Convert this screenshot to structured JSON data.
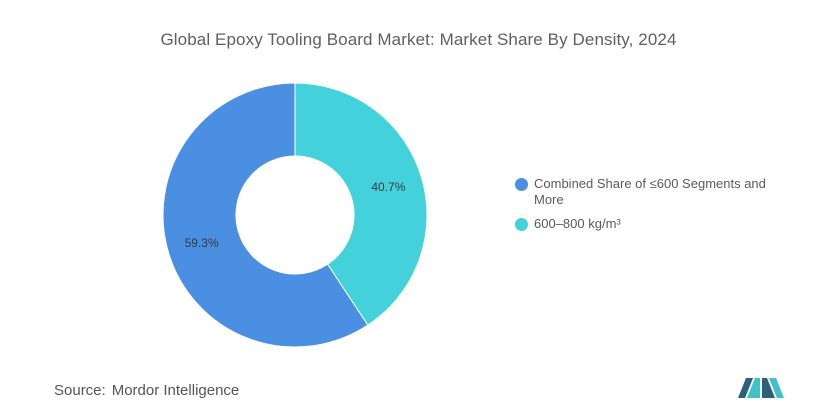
{
  "title": "Global Epoxy Tooling Board Market: Market Share By Density, 2024",
  "source": {
    "label": "Source:",
    "value": "Mordor Intelligence"
  },
  "logo_icon": "mordor-intelligence-logo",
  "colors": {
    "series_1": "#4b8fe2",
    "series_2": "#43d1dc",
    "logo_dark": "#2c5f7c",
    "logo_teal": "#3fc2c9"
  },
  "chart_data": {
    "type": "pie",
    "donut": true,
    "title": "Global Epoxy Tooling Board Market: Market Share By Density, 2024",
    "legend_position": "right",
    "slices": [
      {
        "label": "600–800 kg/m³",
        "value": 40.7,
        "display": "40.7%",
        "color": "#43d1dc"
      },
      {
        "label": "Combined Share of ≤600 Segments and More",
        "value": 59.3,
        "display": "59.3%",
        "color": "#4b8fe2"
      }
    ],
    "legend": [
      {
        "label": "Combined Share of ≤600 Segments and More",
        "color": "#4b8fe2"
      },
      {
        "label": "600–800 kg/m³",
        "color": "#43d1dc"
      }
    ]
  }
}
